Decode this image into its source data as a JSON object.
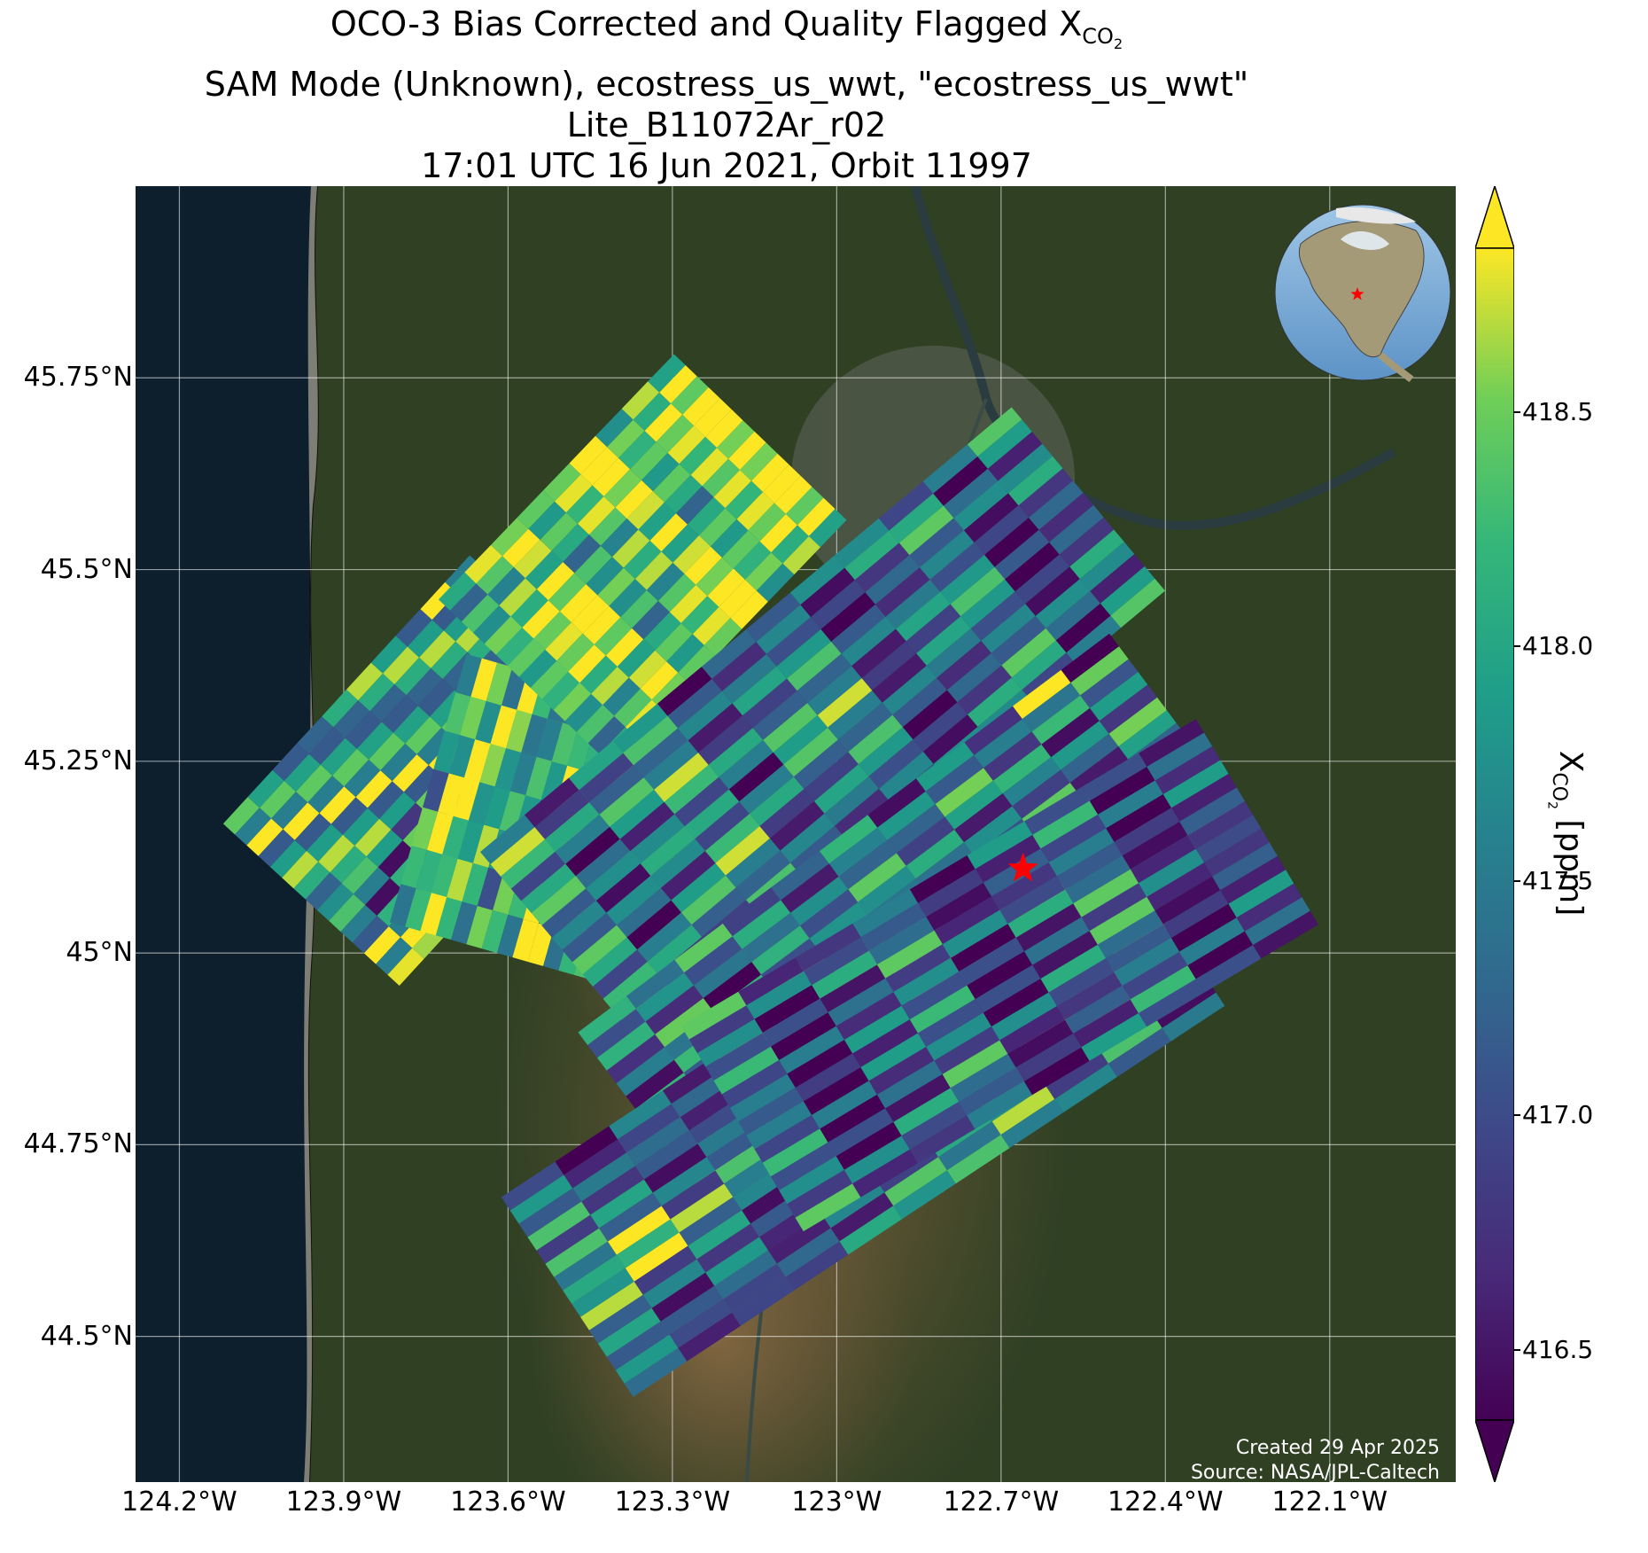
{
  "title": {
    "line1_prefix": "OCO-3 Bias Corrected and Quality Flagged X",
    "line1_sub": "CO",
    "line1_sub2": "2",
    "line2": "SAM Mode (Unknown), ecostress_us_wwt, \"ecostress_us_wwt\"",
    "line3": "Lite_B11072Ar_r02",
    "line4": "17:01 UTC 16 Jun 2021, Orbit 11997"
  },
  "map": {
    "lon_range": [
      -124.28,
      -121.87
    ],
    "lat_range": [
      44.31,
      46.0
    ],
    "lat_ticks": [
      {
        "value": 45.75,
        "label": "45.75°N"
      },
      {
        "value": 45.5,
        "label": "45.5°N"
      },
      {
        "value": 45.25,
        "label": "45.25°N"
      },
      {
        "value": 45.0,
        "label": "45°N"
      },
      {
        "value": 44.75,
        "label": "44.75°N"
      },
      {
        "value": 44.5,
        "label": "44.5°N"
      }
    ],
    "lon_ticks": [
      {
        "value": -124.2,
        "label": "124.2°W"
      },
      {
        "value": -123.9,
        "label": "123.9°W"
      },
      {
        "value": -123.6,
        "label": "123.6°W"
      },
      {
        "value": -123.3,
        "label": "123.3°W"
      },
      {
        "value": -123.0,
        "label": "123°W"
      },
      {
        "value": -122.7,
        "label": "122.7°W"
      },
      {
        "value": -122.4,
        "label": "122.4°W"
      },
      {
        "value": -122.1,
        "label": "122.1°W"
      }
    ],
    "target_site": {
      "lon": -122.66,
      "lat": 45.11,
      "marker": "red-star-icon"
    },
    "colors": {
      "ocean": "#0d1f2d",
      "land": "#2f4023",
      "valley": "#7a5a3a",
      "marker": "#ff0000"
    }
  },
  "colorbar": {
    "label_prefix": "X",
    "label_sub": "CO",
    "label_sub2": "2",
    "label_suffix": " [ppm]",
    "min": 416.35,
    "max": 418.85,
    "ticks": [
      "418.5",
      "418.0",
      "417.5",
      "417.0",
      "416.5"
    ],
    "colormap": "viridis"
  },
  "credits": {
    "created": "Created 29 Apr 2025",
    "source": "Source: NASA/JPL-Caltech"
  },
  "chart_data": {
    "type": "heatmap",
    "x_name": "longitude",
    "y_name": "latitude",
    "value_name": "XCO2",
    "swaths": [
      {
        "start": [
          -123.97,
          45.07
        ],
        "end": [
          -123.52,
          45.42
        ],
        "values": [
          417.6,
          418.1,
          418.7,
          417.9,
          416.8,
          418.5,
          417.2,
          418.8,
          418.3,
          417.5
        ]
      },
      {
        "start": [
          -123.62,
          45.0
        ],
        "end": [
          -123.48,
          45.35
        ],
        "values": [
          417.8,
          418.6,
          418.9,
          417.4,
          418.2,
          418.7,
          417.9
        ]
      },
      {
        "start": [
          -123.58,
          45.36
        ],
        "end": [
          -123.15,
          45.68
        ],
        "values": [
          418.2,
          418.8,
          418.5,
          418.9,
          418.1,
          418.7,
          417.6,
          418.4,
          418.8
        ]
      },
      {
        "start": [
          -123.52,
          45.02
        ],
        "end": [
          -122.55,
          45.6
        ],
        "values": [
          417.3,
          416.8,
          418.1,
          417.7,
          416.6,
          417.9,
          418.4,
          417.2,
          416.9,
          418.0,
          417.5,
          416.7
        ]
      },
      {
        "start": [
          -123.35,
          44.78
        ],
        "end": [
          -122.38,
          45.3
        ],
        "values": [
          417.6,
          418.2,
          416.8,
          417.9,
          417.1,
          418.5,
          416.7,
          417.8,
          417.4,
          418.1,
          416.9
        ]
      },
      {
        "start": [
          -123.5,
          44.56
        ],
        "end": [
          -122.42,
          45.07
        ],
        "values": [
          418.4,
          417.8,
          418.7,
          417.2,
          418.0,
          416.8,
          417.5,
          417.0,
          416.6,
          417.3,
          416.9
        ]
      },
      {
        "start": [
          -123.18,
          44.78
        ],
        "end": [
          -122.24,
          45.18
        ],
        "values": [
          416.8,
          417.2,
          416.6,
          417.9,
          416.7,
          417.4,
          416.5,
          418.1,
          417.0
        ]
      }
    ]
  }
}
